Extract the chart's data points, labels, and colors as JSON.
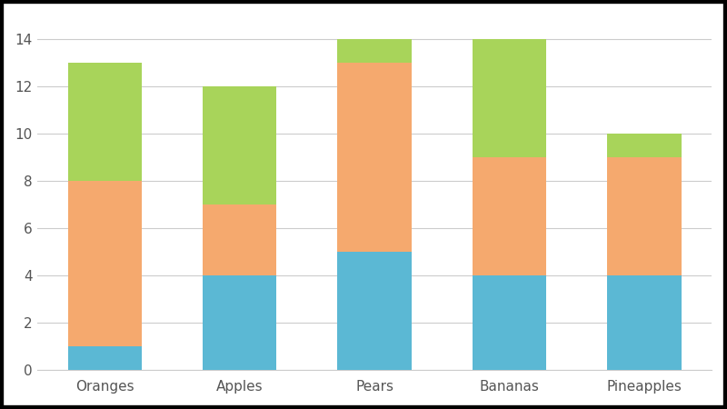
{
  "categories": [
    "Oranges",
    "Apples",
    "Pears",
    "Bananas",
    "Pineapples"
  ],
  "series": {
    "blue": [
      1,
      4,
      5,
      4,
      4
    ],
    "orange": [
      7,
      3,
      8,
      5,
      5
    ],
    "green": [
      5,
      5,
      1,
      5,
      1
    ]
  },
  "colors": {
    "blue": "#5BB8D4",
    "orange": "#F5A96E",
    "green": "#A8D45A"
  },
  "ylim": [
    0,
    15
  ],
  "yticks": [
    0,
    2,
    4,
    6,
    8,
    10,
    12,
    14
  ],
  "background_color": "#FFFFFF",
  "grid_color": "#CCCCCC",
  "text_color": "#555555",
  "bar_width": 0.55,
  "figure_bg": "#FFFFFF"
}
